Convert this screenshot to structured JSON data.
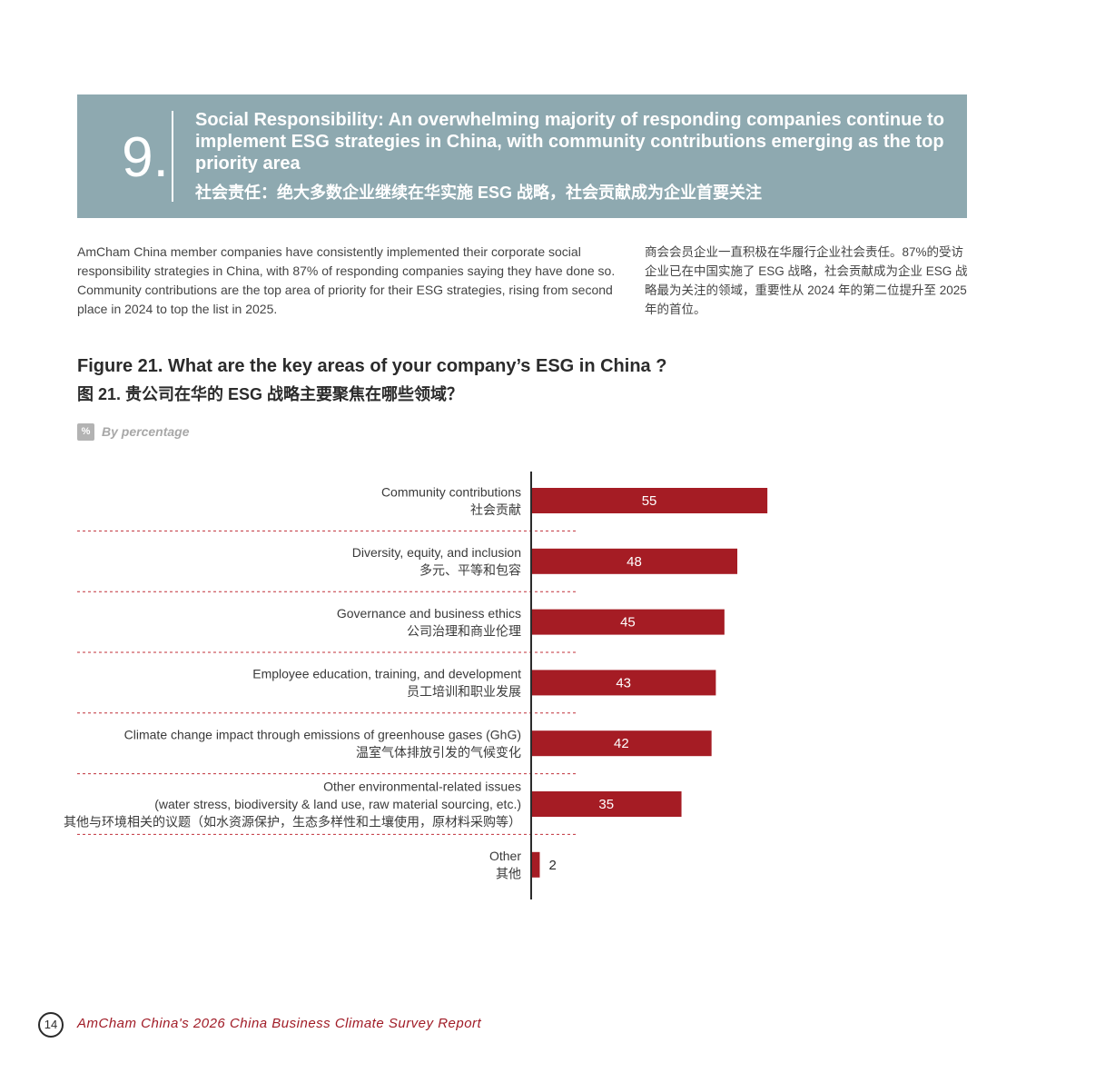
{
  "banner": {
    "number": "9.",
    "title_en": "Social Responsibility: An overwhelming majority of responding companies continue to implement ESG strategies in China, with community contributions emerging as the top priority area",
    "title_zh": "社会责任：绝大多数企业继续在华实施 ESG 战略，社会贡献成为企业首要关注"
  },
  "intro": {
    "en": "AmCham China member companies have consistently implemented their corporate social responsibility strategies in China, with 87% of responding companies saying they have done so. Community contributions are the top area of priority for their ESG strategies, rising from second place in 2024 to top the list in 2025.",
    "zh": "商会会员企业一直积极在华履行企业社会责任。87%的受访企业已在中国实施了 ESG 战略，社会贡献成为企业 ESG 战略最为关注的领域，重要性从 2024 年的第二位提升至 2025 年的首位。"
  },
  "figure": {
    "title": "Figure 21. What are the key areas of your company’s ESG in China ?",
    "title_zh": "图 21. 贵公司在华的 ESG 战略主要聚焦在哪些领域？",
    "unit_badge": "%",
    "unit_text": "By percentage"
  },
  "chart_data": {
    "type": "bar",
    "orientation": "horizontal",
    "categories": [
      {
        "en": [
          "Community contributions"
        ],
        "zh": "社会贡献"
      },
      {
        "en": [
          "Diversity, equity, and inclusion"
        ],
        "zh": "多元、平等和包容"
      },
      {
        "en": [
          "Governance and business ethics"
        ],
        "zh": "公司治理和商业伦理"
      },
      {
        "en": [
          "Employee education, training, and development"
        ],
        "zh": "员工培训和职业发展"
      },
      {
        "en": [
          "Climate change impact through emissions of greenhouse gases (GhG)"
        ],
        "zh": "温室气体排放引发的气候变化"
      },
      {
        "en": [
          "Other environmental-related issues",
          "(water stress, biodiversity & land use, raw material sourcing, etc.)"
        ],
        "zh": "其他与环境相关的议题（如水资源保护，生态多样性和土壤使用，原材料采购等）"
      },
      {
        "en": [
          "Other"
        ],
        "zh": "其他"
      }
    ],
    "values": [
      55,
      48,
      45,
      43,
      42,
      35,
      2
    ],
    "xlim": [
      0,
      100
    ],
    "bar_color": "#a51c24",
    "label_color_inside": "#ffffff",
    "label_color_outside": "#2b2b2b",
    "separator_color": "#c0303a",
    "axis_color": "#2b2b2b"
  },
  "footer": {
    "page_number": "14",
    "report_title": "AmCham China's 2026 China Business Climate Survey Report"
  }
}
